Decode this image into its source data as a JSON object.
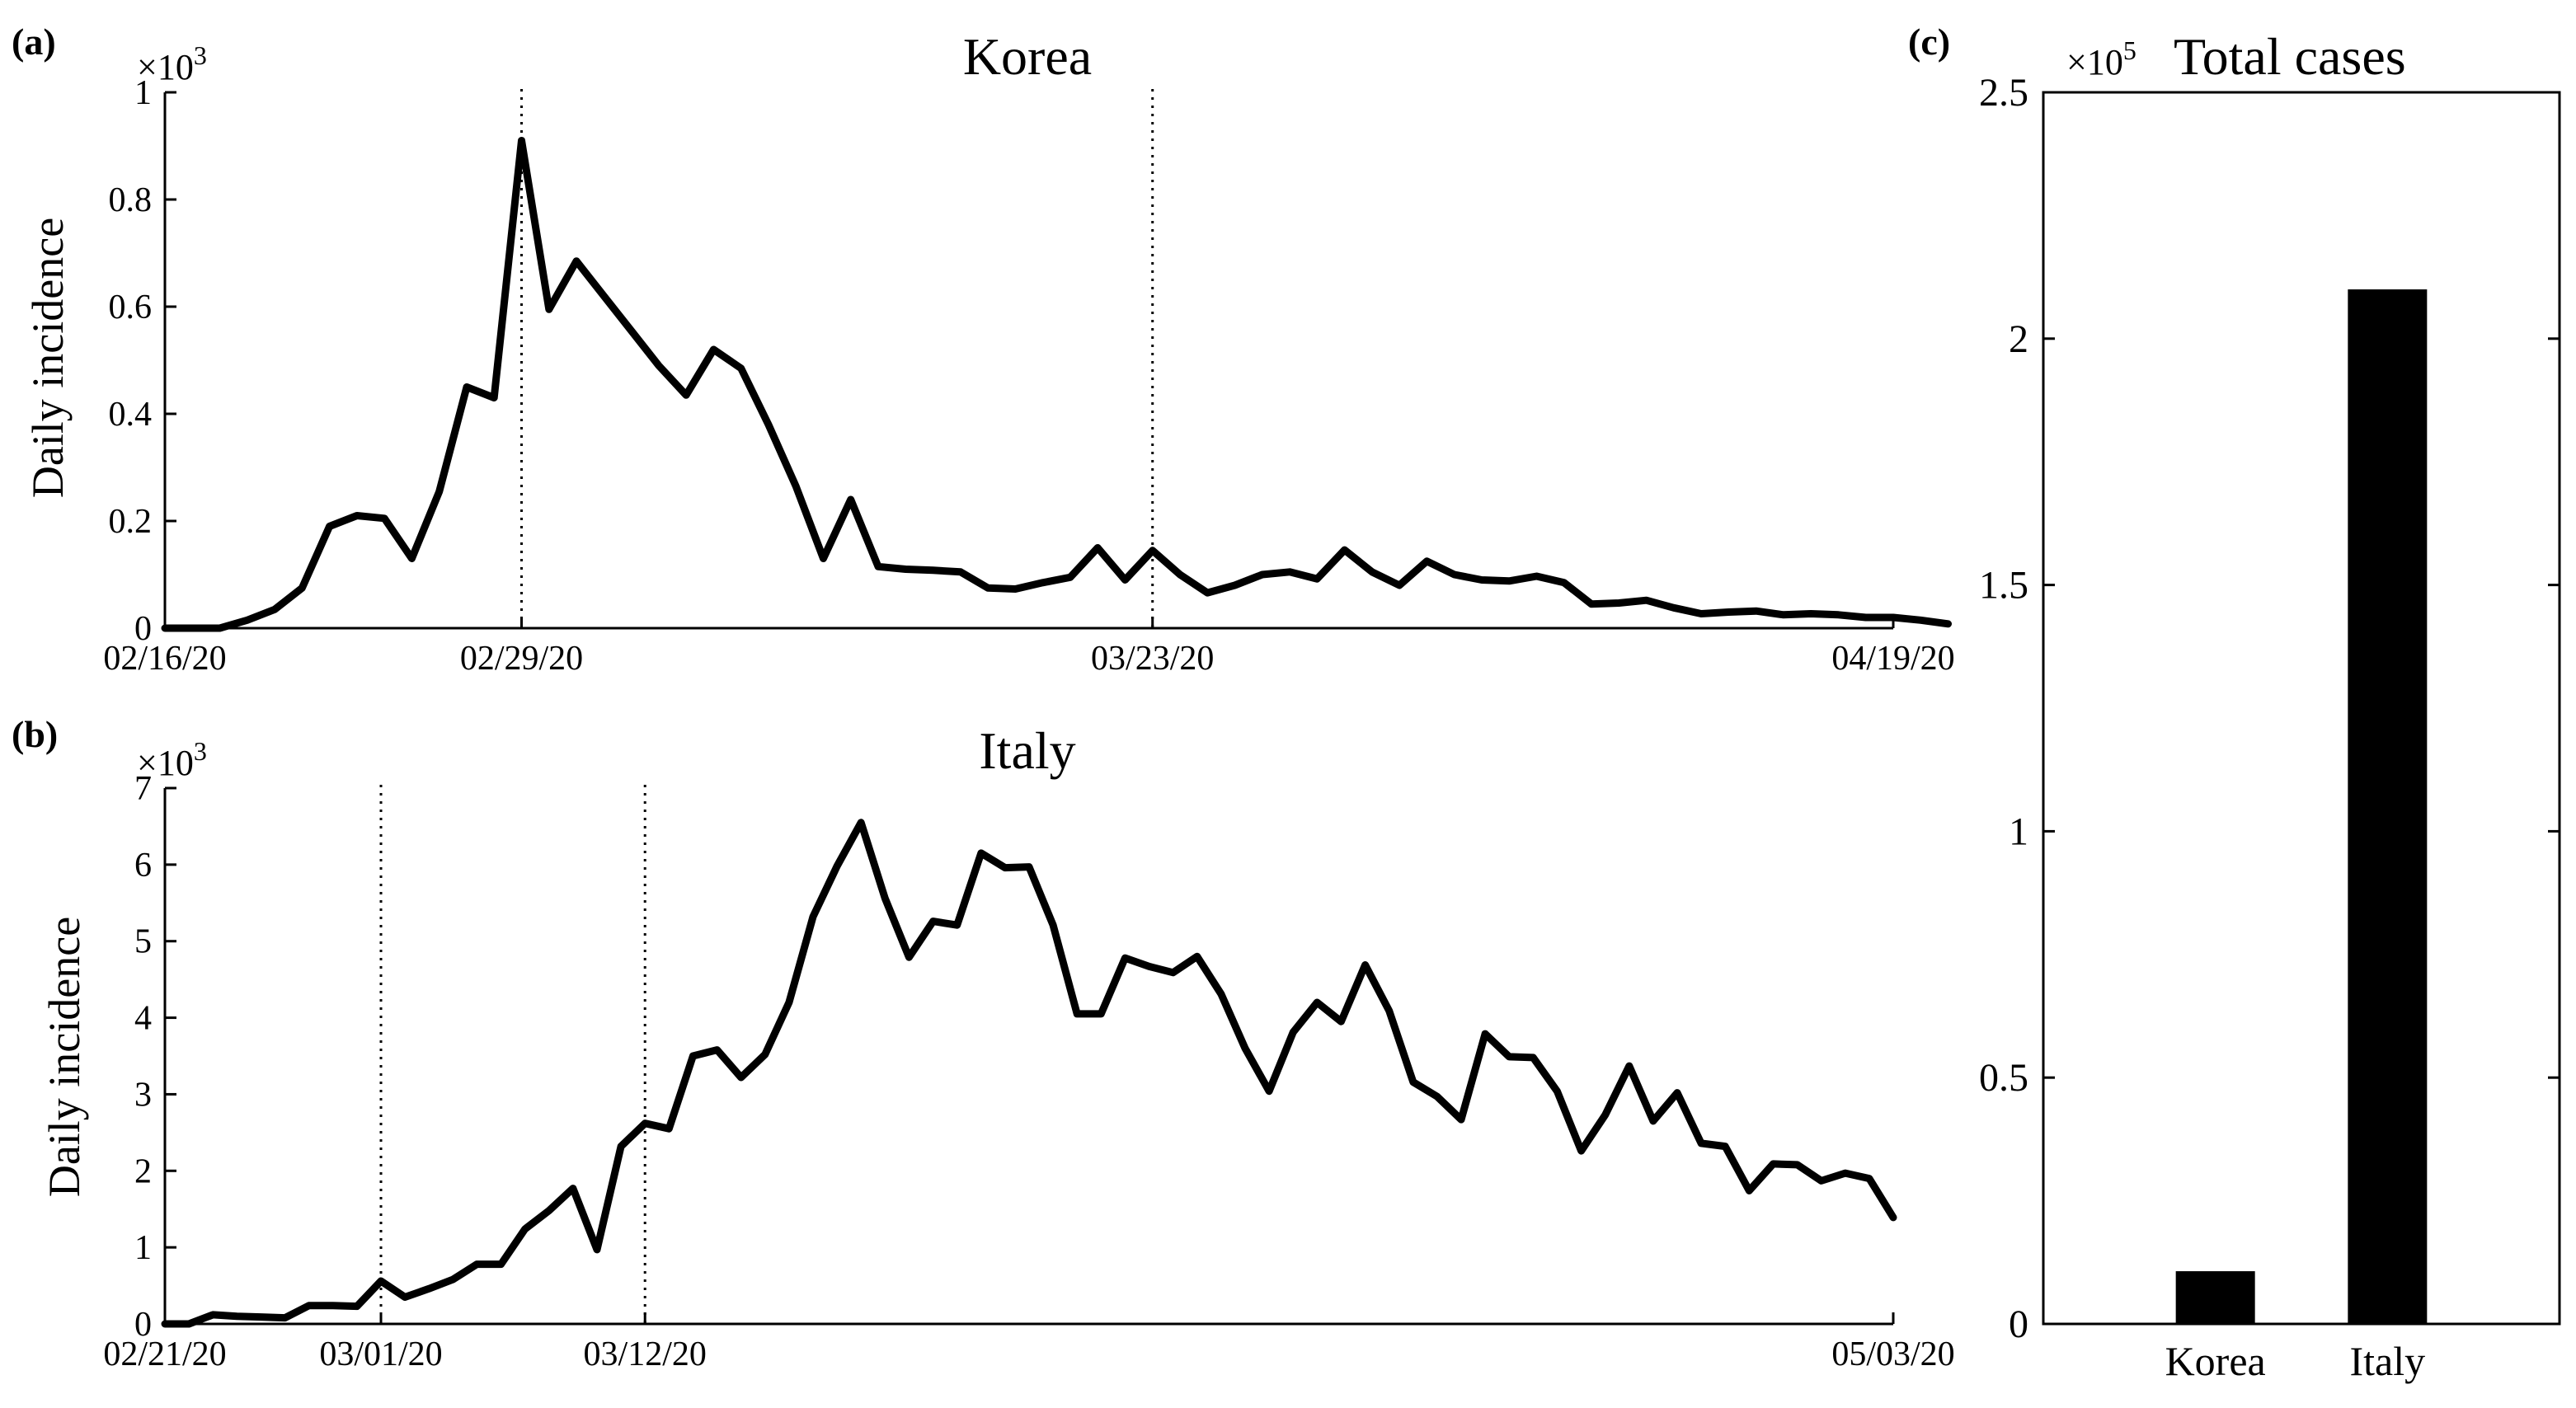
{
  "panels": {
    "a": "(a)",
    "b": "(b)",
    "c": "(c)"
  },
  "colors": {
    "line": "#000000",
    "bar": "#000000",
    "axis": "#000000"
  },
  "chart_data": [
    {
      "id": "korea",
      "type": "line",
      "title": "Korea",
      "ylabel": "Daily incidence",
      "y_multiplier_label": "×10",
      "y_multiplier_exp": "3",
      "y_scale": 1000,
      "ylim": [
        0,
        1
      ],
      "y_ticks": [
        "0",
        "0.2",
        "0.4",
        "0.6",
        "0.8",
        "1"
      ],
      "x_range": [
        "02/16/20",
        "04/19/20"
      ],
      "x_ticks": [
        "02/16/20",
        "02/29/20",
        "03/23/20",
        "04/19/20"
      ],
      "vlines": [
        "02/29/20",
        "03/23/20"
      ],
      "grid": false,
      "series": [
        {
          "start_date": "02/16/20",
          "values": [
            0,
            0,
            0,
            0.015,
            0.035,
            0.075,
            0.19,
            0.21,
            0.205,
            0.13,
            0.255,
            0.45,
            0.43,
            0.91,
            0.595,
            0.685,
            0.62,
            0.555,
            0.49,
            0.435,
            0.52,
            0.485,
            0.38,
            0.265,
            0.13,
            0.24,
            0.115,
            0.11,
            0.108,
            0.105,
            0.075,
            0.073,
            0.085,
            0.095,
            0.15,
            0.09,
            0.145,
            0.1,
            0.066,
            0.08,
            0.1,
            0.105,
            0.092,
            0.146,
            0.105,
            0.08,
            0.125,
            0.1,
            0.09,
            0.088,
            0.097,
            0.085,
            0.045,
            0.047,
            0.052,
            0.038,
            0.027,
            0.03,
            0.032,
            0.025,
            0.027,
            0.025,
            0.02,
            0.02,
            0.015,
            0.008
          ]
        }
      ]
    },
    {
      "id": "italy",
      "type": "line",
      "title": "Italy",
      "ylabel": "Daily incidence",
      "y_multiplier_label": "×10",
      "y_multiplier_exp": "3",
      "y_scale": 1000,
      "ylim": [
        0,
        7
      ],
      "y_ticks": [
        "0",
        "1",
        "2",
        "3",
        "4",
        "5",
        "6",
        "7"
      ],
      "x_range": [
        "02/21/20",
        "05/03/20"
      ],
      "x_ticks": [
        "02/21/20",
        "03/01/20",
        "03/12/20",
        "05/03/20"
      ],
      "vlines": [
        "03/01/20",
        "03/12/20"
      ],
      "grid": false,
      "series": [
        {
          "start_date": "02/21/20",
          "values": [
            0,
            0,
            0.12,
            0.1,
            0.09,
            0.08,
            0.24,
            0.24,
            0.23,
            0.56,
            0.35,
            0.46,
            0.58,
            0.78,
            0.78,
            1.24,
            1.48,
            1.77,
            0.97,
            2.32,
            2.62,
            2.55,
            3.5,
            3.58,
            3.22,
            3.52,
            4.2,
            5.32,
            5.98,
            6.55,
            5.56,
            4.79,
            5.26,
            5.21,
            6.15,
            5.96,
            5.97,
            5.21,
            4.05,
            4.05,
            4.78,
            4.67,
            4.59,
            4.8,
            4.31,
            3.6,
            3.04,
            3.81,
            4.2,
            3.95,
            4.69,
            4.09,
            3.16,
            2.97,
            2.67,
            3.79,
            3.49,
            3.48,
            3.04,
            2.26,
            2.73,
            3.37,
            2.65,
            3.02,
            2.36,
            2.32,
            1.74,
            2.09,
            2.08,
            1.87,
            1.97,
            1.9,
            1.39
          ]
        }
      ]
    },
    {
      "id": "total",
      "type": "bar",
      "title": "Total cases",
      "y_multiplier_label": "×10",
      "y_multiplier_exp": "5",
      "y_scale": 100000,
      "ylim": [
        0,
        2.5
      ],
      "y_ticks": [
        "0",
        "0.5",
        "1",
        "1.5",
        "2",
        "2.5"
      ],
      "categories": [
        "Korea",
        "Italy"
      ],
      "values": [
        0.107,
        2.1
      ],
      "grid": false
    }
  ]
}
